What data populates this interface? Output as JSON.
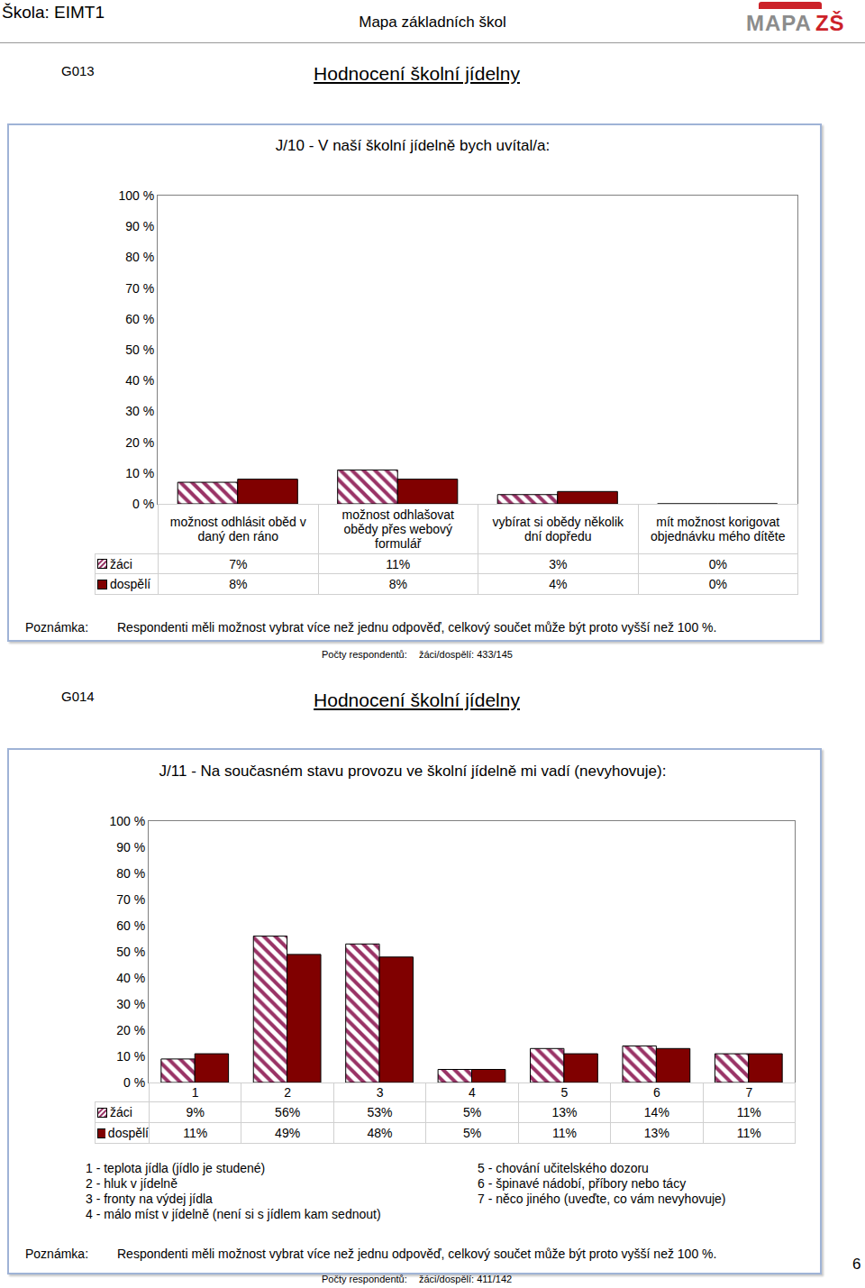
{
  "page": {
    "school": "Škola: EIMT1",
    "header": "Mapa základních škol",
    "logo": [
      "MAPA",
      "ZŠ"
    ],
    "page_number": "6"
  },
  "chart_data": [
    {
      "id": "G013",
      "heading": "Hodnocení školní jídelny",
      "type": "bar",
      "title": "J/10 - V naší školní jídelně bych uvítal/a:",
      "categories": [
        "možnost odhlásit oběd v daný den ráno",
        "možnost odhlašovat obědy přes webový formulář",
        "vybírat si obědy několik dní dopředu",
        "mít možnost korigovat objednávku mého dítěte"
      ],
      "series": [
        {
          "name": "žáci",
          "color": "#993366",
          "values": [
            7,
            11,
            3,
            0
          ],
          "value_labels": [
            "7%",
            "11%",
            "3%",
            "0%"
          ]
        },
        {
          "name": "dospělí",
          "color": "#800000",
          "values": [
            8,
            8,
            4,
            0
          ],
          "value_labels": [
            "8%",
            "8%",
            "4%",
            "0%"
          ]
        }
      ],
      "ylim": [
        0,
        100
      ],
      "yticks": [
        {
          "value": 0,
          "label": "0 %"
        },
        {
          "value": 10,
          "label": "10 %"
        },
        {
          "value": 20,
          "label": "20 %"
        },
        {
          "value": 30,
          "label": "30 %"
        },
        {
          "value": 40,
          "label": "40 %"
        },
        {
          "value": 50,
          "label": "50 %"
        },
        {
          "value": 60,
          "label": "60 %"
        },
        {
          "value": 70,
          "label": "70 %"
        },
        {
          "value": 80,
          "label": "80 %"
        },
        {
          "value": 90,
          "label": "90 %"
        },
        {
          "value": 100,
          "label": "100 %"
        }
      ],
      "grid": false,
      "note_label": "Poznámka:",
      "note": "Respondenti měli možnost vybrat více než jednu odpověď, celkový součet může být proto vyšší než 100 %.",
      "respondents_label": "Počty respondentů:",
      "respondents": "žáci/dospělí: 433/145"
    },
    {
      "id": "G014",
      "heading": "Hodnocení školní jídelny",
      "type": "bar",
      "title": "J/11 - Na současném stavu provozu ve školní jídelně mi vadí (nevyhovuje):",
      "categories": [
        "1",
        "2",
        "3",
        "4",
        "5",
        "6",
        "7"
      ],
      "series": [
        {
          "name": "žáci",
          "color": "#993366",
          "values": [
            9,
            56,
            53,
            5,
            13,
            14,
            11
          ],
          "value_labels": [
            "9%",
            "56%",
            "53%",
            "5%",
            "13%",
            "14%",
            "11%"
          ]
        },
        {
          "name": "dospělí",
          "color": "#800000",
          "values": [
            11,
            49,
            48,
            5,
            11,
            13,
            11
          ],
          "value_labels": [
            "11%",
            "49%",
            "48%",
            "5%",
            "11%",
            "13%",
            "11%"
          ]
        }
      ],
      "ylim": [
        0,
        100
      ],
      "yticks": [
        {
          "value": 0,
          "label": "0 %"
        },
        {
          "value": 10,
          "label": "10 %"
        },
        {
          "value": 20,
          "label": "20 %"
        },
        {
          "value": 30,
          "label": "30 %"
        },
        {
          "value": 40,
          "label": "40 %"
        },
        {
          "value": 50,
          "label": "50 %"
        },
        {
          "value": 60,
          "label": "60 %"
        },
        {
          "value": 70,
          "label": "70 %"
        },
        {
          "value": 80,
          "label": "80 %"
        },
        {
          "value": 90,
          "label": "90 %"
        },
        {
          "value": 100,
          "label": "100 %"
        }
      ],
      "grid": false,
      "descriptions": [
        "1 - teplota jídla (jídlo je studené)",
        "2 - hluk v jídelně",
        "3 - fronty na výdej jídla",
        "4 - málo míst v jídelně (není si s jídlem kam sednout)",
        "5 - chování učitelského dozoru",
        "6 - špinavé nádobí, příbory nebo tácy",
        "7 - něco jiného (uveďte, co vám nevyhovuje)"
      ],
      "note_label": "Poznámka:",
      "note": "Respondenti měli možnost vybrat více než jednu odpověď, celkový součet může být proto vyšší než 100 %.",
      "respondents_label": "Počty respondentů:",
      "respondents": "žáci/dospělí: 411/142"
    }
  ]
}
